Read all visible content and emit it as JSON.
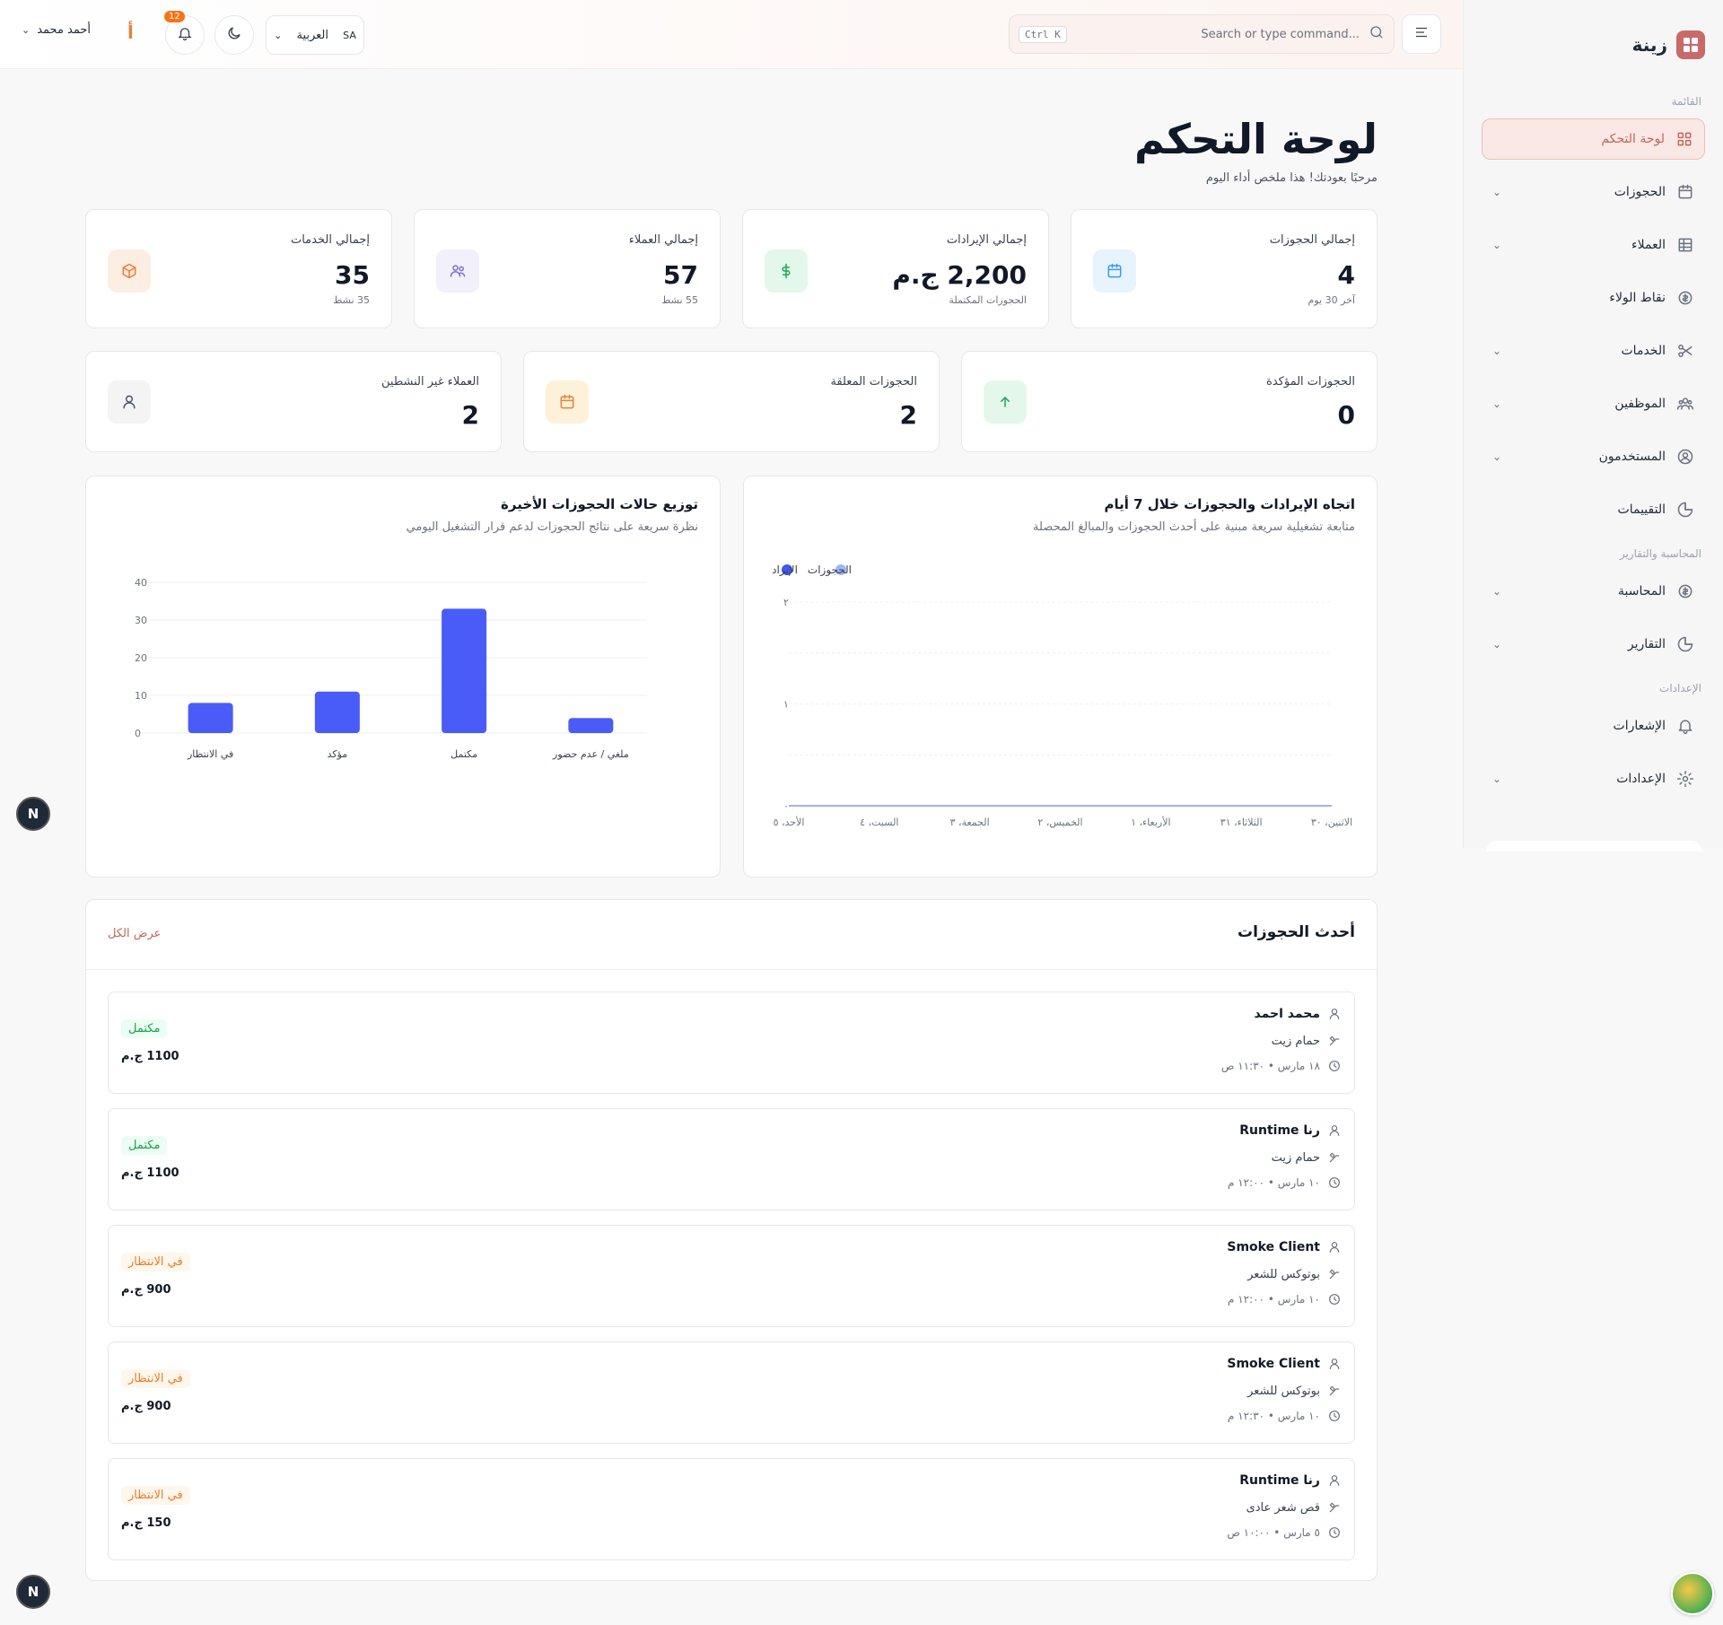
{
  "brand": {
    "name": "زينة"
  },
  "sidebar": {
    "sections": [
      "القائمة",
      "المحاسبة والتقارير",
      "الإعدادات"
    ],
    "items": [
      {
        "label": "لوحة التحكم",
        "icon": "grid-icon",
        "active": true
      },
      {
        "label": "الحجوزات",
        "icon": "calendar-icon",
        "chevron": true
      },
      {
        "label": "العملاء",
        "icon": "table-icon",
        "chevron": true
      },
      {
        "label": "نقاط الولاء",
        "icon": "coin-icon",
        "chevron": false
      },
      {
        "label": "الخدمات",
        "icon": "scissors-icon",
        "chevron": true
      },
      {
        "label": "الموظفين",
        "icon": "team-icon",
        "chevron": true
      },
      {
        "label": "المستخدمون",
        "icon": "user-circle-icon",
        "chevron": true
      },
      {
        "label": "التقييمات",
        "icon": "pie-icon",
        "chevron": false
      },
      {
        "label": "المحاسبة",
        "icon": "coin-icon",
        "chevron": true
      },
      {
        "label": "التقارير",
        "icon": "pie-icon",
        "chevron": true
      },
      {
        "label": "الإشعارات",
        "icon": "bell-icon",
        "chevron": false
      },
      {
        "label": "الإعدادات",
        "icon": "gear-icon",
        "chevron": true
      }
    ]
  },
  "topbar": {
    "user_name": "أحمد محمد",
    "notif_count": "12",
    "lang_label": "العربية",
    "lang_code": "SA",
    "search_placeholder": "Search or type command...",
    "search_shortcut": "Ctrl K",
    "alert_glyph": "أ"
  },
  "page": {
    "title": "لوحة التحكم",
    "subtitle": "مرحبًا بعودتك! هذا ملخص أداء اليوم"
  },
  "stats": [
    {
      "title": "إجمالي الحجوزات",
      "value": "4",
      "note": "آخر 30 يوم",
      "color": "#3b9be0",
      "bg": "#e7f3fd",
      "icon": "calendar-icon"
    },
    {
      "title": "إجمالي الإيرادات",
      "value": "2,200 ج.م",
      "note": "الحجوزات المكتملة",
      "color": "#22a55a",
      "bg": "#e3f8ea",
      "icon": "dollar-icon"
    },
    {
      "title": "إجمالي العملاء",
      "value": "57",
      "note": "55 نشط",
      "color": "#7c6fd6",
      "bg": "#f2f0fb",
      "icon": "users-icon"
    },
    {
      "title": "إجمالي الخدمات",
      "value": "35",
      "note": "35 نشط",
      "color": "#f27a2f",
      "bg": "#fdeee3",
      "icon": "box-icon"
    }
  ],
  "stats2": [
    {
      "title": "الحجوزات المؤكدة",
      "value": "0",
      "color": "#22a55a",
      "bg": "#e3f8ea",
      "icon": "arrow-up-icon"
    },
    {
      "title": "الحجوزات المعلقة",
      "value": "2",
      "color": "#e2863b",
      "bg": "#fdf1d9",
      "icon": "calendar-icon"
    },
    {
      "title": "العملاء غير النشطين",
      "value": "2",
      "color": "#4b5563",
      "bg": "#f4f4f5",
      "icon": "user-icon"
    }
  ],
  "line_chart": {
    "title": "اتجاه الإيرادات والحجوزات خلال 7 أيام",
    "subtitle": "متابعة تشغيلية سريعة مبنية على أحدث الحجوزات والمبالغ المحصلة",
    "chart_data": {
      "type": "line",
      "x": [
        "الاثنين، ٣٠",
        "الثلاثاء، ٣١",
        "الأربعاء، ١",
        "الخميس، ٢",
        "الجمعة، ٣",
        "السبت، ٤",
        "الأحد، ٥"
      ],
      "series": [
        {
          "name": "الإيراد",
          "values": [
            0,
            0,
            0,
            0,
            0,
            0,
            0
          ],
          "color": "#4257f5"
        },
        {
          "name": "الحجوزات",
          "values": [
            0,
            0,
            0,
            0,
            0,
            0,
            0
          ],
          "color": "#9db4f5"
        }
      ],
      "yticks": [
        "٠",
        "١",
        "٢"
      ],
      "ylim": [
        0,
        2
      ],
      "legend": "top-left"
    }
  },
  "bar_chart": {
    "title": "توزيع حالات الحجوزات الأخيرة",
    "subtitle": "نظرة سريعة على نتائج الحجوزات لدعم قرار التشغيل اليومي",
    "chart_data": {
      "type": "bar",
      "categories": [
        "في الانتظار",
        "مؤكد",
        "مكتمل",
        "ملغي / عدم حضور"
      ],
      "values": [
        8,
        11,
        33,
        4
      ],
      "yticks": [
        0,
        10,
        20,
        30,
        40
      ],
      "ylim": [
        0,
        40
      ],
      "color": "#4a5cf7"
    }
  },
  "bookings": {
    "title": "أحدث الحجوزات",
    "view_all": "عرض الكل",
    "items": [
      {
        "name": "محمد احمد",
        "service": "حمام زيت",
        "time": "١٨ مارس • ١١:٣٠ ص",
        "status": "مكتمل",
        "status_type": "done",
        "price": "1100 ج.م"
      },
      {
        "name": "رنا Runtime",
        "service": "حمام زيت",
        "time": "١٠ مارس • ١٢:٠٠ م",
        "status": "مكتمل",
        "status_type": "done",
        "price": "1100 ج.م"
      },
      {
        "name": "Smoke Client",
        "service": "بوتوكس للشعر",
        "time": "١٠ مارس • ١٢:٠٠ م",
        "status": "في الانتظار",
        "status_type": "pending",
        "price": "900 ج.م"
      },
      {
        "name": "Smoke Client",
        "service": "بوتوكس للشعر",
        "time": "١٠ مارس • ١٢:٣٠ م",
        "status": "في الانتظار",
        "status_type": "pending",
        "price": "900 ج.م"
      },
      {
        "name": "رنا Runtime",
        "service": "قص شعر عادى",
        "time": "٥ مارس • ١٠:٠٠ ص",
        "status": "في الانتظار",
        "status_type": "pending",
        "price": "150 ج.م"
      }
    ]
  },
  "floating": {
    "n_label": "N"
  }
}
